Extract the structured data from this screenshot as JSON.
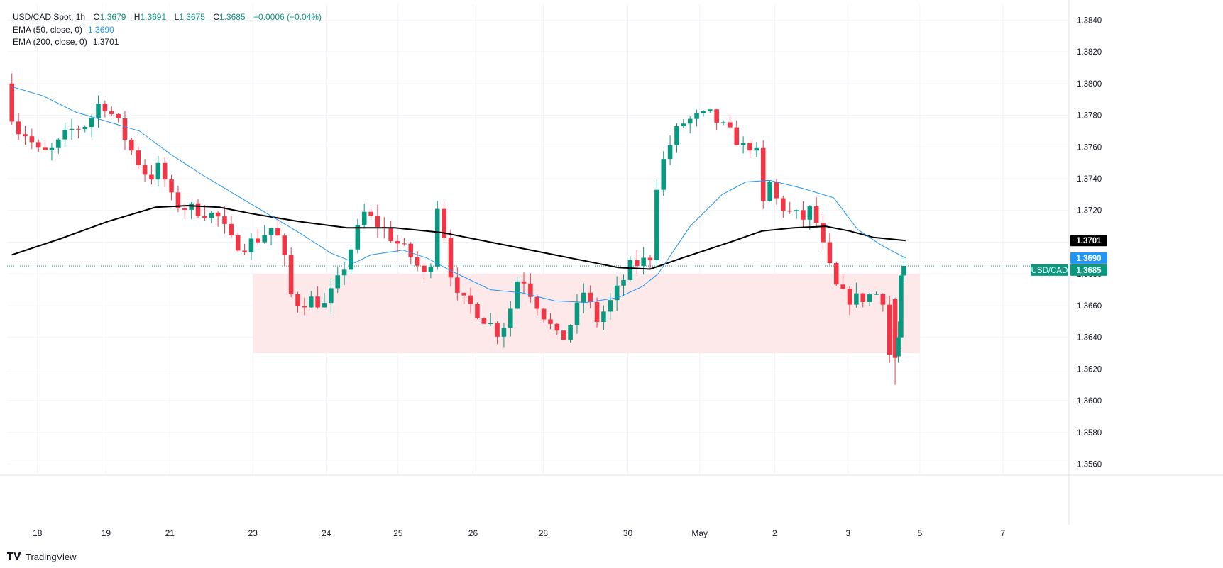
{
  "legend": {
    "symbol": "USD/CAD Spot, 1h",
    "open_label": "O",
    "open": "1.3679",
    "high_label": "H",
    "high": "1.3691",
    "low_label": "L",
    "low": "1.3675",
    "close_label": "C",
    "close": "1.3685",
    "change": "+0.0006 (+0.04%)",
    "ema50_label": "EMA (50, close, 0)",
    "ema50_value": "1.3690",
    "ema200_label": "EMA (200, close, 0)",
    "ema200_value": "1.3701"
  },
  "branding": {
    "logo_text": "TV",
    "name": "TradingView"
  },
  "colors": {
    "up": "#089981",
    "down": "#f23645",
    "ema50": "#2196f3",
    "ema200": "#000000",
    "zone": "#fde8ea",
    "grid": "#f0f3fa"
  },
  "chart_data": {
    "type": "candlestick",
    "title": "USD/CAD Spot, 1h",
    "y_axis": {
      "ylim": [
        1.3554,
        1.385
      ],
      "ticks": [
        "1.3840",
        "1.3820",
        "1.3800",
        "1.3780",
        "1.3760",
        "1.3740",
        "1.3720",
        "1.3700",
        "1.3680",
        "1.3660",
        "1.3640",
        "1.3620",
        "1.3600",
        "1.3580",
        "1.3560"
      ]
    },
    "x_axis": {
      "labels": [
        {
          "label": "18",
          "t": 0.16
        },
        {
          "label": "19",
          "t": 0.59
        },
        {
          "label": "21",
          "t": 0.99
        },
        {
          "label": "23",
          "t": 1.51
        },
        {
          "label": "24",
          "t": 1.97
        },
        {
          "label": "25",
          "t": 2.42
        },
        {
          "label": "26",
          "t": 2.89
        },
        {
          "label": "28",
          "t": 3.33
        },
        {
          "label": "30",
          "t": 3.86
        },
        {
          "label": "May",
          "t": 4.31
        },
        {
          "label": "2",
          "t": 4.78
        },
        {
          "label": "3",
          "t": 5.24
        },
        {
          "label": "5",
          "t": 5.69
        },
        {
          "label": "7",
          "t": 6.21
        }
      ],
      "range": [
        -0.03,
        6.62
      ]
    },
    "price_badges": [
      {
        "name": "EMA 200",
        "text": "1.3701",
        "value": 1.3701,
        "color": "#000000"
      },
      {
        "name": "EMA 50",
        "text": "1.3690",
        "value": 1.369,
        "color": "#2196f3"
      },
      {
        "name": "USD/CAD",
        "label": "USD/CAD",
        "text": "1.3685",
        "value": 1.3685,
        "color": "#089981"
      }
    ],
    "last_price": 1.3685,
    "zone": {
      "t_start": 1.51,
      "t_end": 5.69,
      "low": 1.363,
      "high": 1.368
    },
    "anchors": [
      [
        0.0,
        1.38
      ],
      [
        0.06,
        1.3772
      ],
      [
        0.13,
        1.3768
      ],
      [
        0.22,
        1.3755
      ],
      [
        0.3,
        1.3758
      ],
      [
        0.4,
        1.377
      ],
      [
        0.52,
        1.3775
      ],
      [
        0.6,
        1.379
      ],
      [
        0.7,
        1.3776
      ],
      [
        0.8,
        1.3756
      ],
      [
        0.9,
        1.374
      ],
      [
        0.97,
        1.3748
      ],
      [
        1.05,
        1.3725
      ],
      [
        1.12,
        1.3722
      ],
      [
        1.22,
        1.372
      ],
      [
        1.33,
        1.3716
      ],
      [
        1.42,
        1.37
      ],
      [
        1.5,
        1.3698
      ],
      [
        1.58,
        1.3702
      ],
      [
        1.68,
        1.371
      ],
      [
        1.74,
        1.3695
      ],
      [
        1.78,
        1.3668
      ],
      [
        1.83,
        1.3662
      ],
      [
        1.93,
        1.3664
      ],
      [
        2.0,
        1.366
      ],
      [
        2.1,
        1.3678
      ],
      [
        2.18,
        1.37
      ],
      [
        2.25,
        1.3718
      ],
      [
        2.35,
        1.371
      ],
      [
        2.45,
        1.37
      ],
      [
        2.55,
        1.369
      ],
      [
        2.65,
        1.3675
      ],
      [
        2.71,
        1.3725
      ],
      [
        2.76,
        1.37
      ],
      [
        2.82,
        1.3665
      ],
      [
        2.92,
        1.366
      ],
      [
        3.02,
        1.365
      ],
      [
        3.1,
        1.3642
      ],
      [
        3.18,
        1.3662
      ],
      [
        3.22,
        1.3682
      ],
      [
        3.3,
        1.3667
      ],
      [
        3.4,
        1.365
      ],
      [
        3.48,
        1.3636
      ],
      [
        3.56,
        1.3652
      ],
      [
        3.63,
        1.367
      ],
      [
        3.7,
        1.365
      ],
      [
        3.78,
        1.366
      ],
      [
        3.85,
        1.3672
      ],
      [
        3.92,
        1.3685
      ],
      [
        4.0,
        1.3688
      ],
      [
        4.05,
        1.3692
      ],
      [
        4.06,
        1.3728
      ],
      [
        4.12,
        1.375
      ],
      [
        4.18,
        1.3765
      ],
      [
        4.24,
        1.3775
      ],
      [
        4.32,
        1.3778
      ],
      [
        4.42,
        1.378
      ],
      [
        4.5,
        1.3772
      ],
      [
        4.58,
        1.3765
      ],
      [
        4.64,
        1.3758
      ],
      [
        4.7,
        1.3765
      ],
      [
        4.74,
        1.3718
      ],
      [
        4.78,
        1.374
      ],
      [
        4.84,
        1.3725
      ],
      [
        4.92,
        1.3718
      ],
      [
        5.0,
        1.3715
      ],
      [
        5.06,
        1.3722
      ],
      [
        5.1,
        1.3705
      ],
      [
        5.16,
        1.3685
      ],
      [
        5.22,
        1.3668
      ],
      [
        5.3,
        1.3664
      ],
      [
        5.38,
        1.3665
      ],
      [
        5.45,
        1.3668
      ],
      [
        5.51,
        1.3664
      ],
      [
        5.54,
        1.3628
      ],
      [
        5.565,
        1.3648
      ],
      [
        5.575,
        1.3665
      ],
      [
        5.59,
        1.3685
      ]
    ],
    "big_candles": [
      {
        "t": 5.535,
        "o": 1.3664,
        "h": 1.3665,
        "l": 1.361,
        "c": 1.3627
      },
      {
        "t": 5.555,
        "o": 1.3628,
        "h": 1.365,
        "l": 1.3624,
        "c": 1.364
      },
      {
        "t": 5.572,
        "o": 1.364,
        "h": 1.368,
        "l": 1.3634,
        "c": 1.3679
      },
      {
        "t": 5.59,
        "o": 1.3679,
        "h": 1.3691,
        "l": 1.3675,
        "c": 1.3685
      }
    ],
    "ema200": [
      [
        0.0,
        1.3692
      ],
      [
        0.3,
        1.3702
      ],
      [
        0.6,
        1.3713
      ],
      [
        0.9,
        1.3722
      ],
      [
        1.1,
        1.3723
      ],
      [
        1.3,
        1.3722
      ],
      [
        1.5,
        1.3718
      ],
      [
        1.8,
        1.3713
      ],
      [
        2.1,
        1.3709
      ],
      [
        2.4,
        1.3709
      ],
      [
        2.7,
        1.3706
      ],
      [
        3.0,
        1.37
      ],
      [
        3.3,
        1.3694
      ],
      [
        3.6,
        1.3688
      ],
      [
        3.8,
        1.3684
      ],
      [
        4.0,
        1.3683
      ],
      [
        4.2,
        1.369
      ],
      [
        4.5,
        1.37
      ],
      [
        4.7,
        1.3707
      ],
      [
        4.9,
        1.3709
      ],
      [
        5.1,
        1.371
      ],
      [
        5.25,
        1.3707
      ],
      [
        5.4,
        1.3703
      ],
      [
        5.6,
        1.3701
      ]
    ],
    "ema50": [
      [
        0.0,
        1.3798
      ],
      [
        0.2,
        1.3792
      ],
      [
        0.4,
        1.3782
      ],
      [
        0.6,
        1.3776
      ],
      [
        0.8,
        1.377
      ],
      [
        1.0,
        1.3755
      ],
      [
        1.2,
        1.3742
      ],
      [
        1.4,
        1.373
      ],
      [
        1.6,
        1.3718
      ],
      [
        1.8,
        1.3706
      ],
      [
        2.0,
        1.3693
      ],
      [
        2.15,
        1.3687
      ],
      [
        2.25,
        1.3692
      ],
      [
        2.45,
        1.3695
      ],
      [
        2.6,
        1.369
      ],
      [
        2.75,
        1.3682
      ],
      [
        3.0,
        1.367
      ],
      [
        3.2,
        1.3668
      ],
      [
        3.4,
        1.3663
      ],
      [
        3.6,
        1.3662
      ],
      [
        3.8,
        1.3665
      ],
      [
        3.95,
        1.3672
      ],
      [
        4.05,
        1.368
      ],
      [
        4.25,
        1.371
      ],
      [
        4.45,
        1.373
      ],
      [
        4.6,
        1.3738
      ],
      [
        4.75,
        1.3739
      ],
      [
        4.95,
        1.3734
      ],
      [
        5.15,
        1.3728
      ],
      [
        5.3,
        1.3708
      ],
      [
        5.45,
        1.3698
      ],
      [
        5.6,
        1.369
      ]
    ]
  }
}
